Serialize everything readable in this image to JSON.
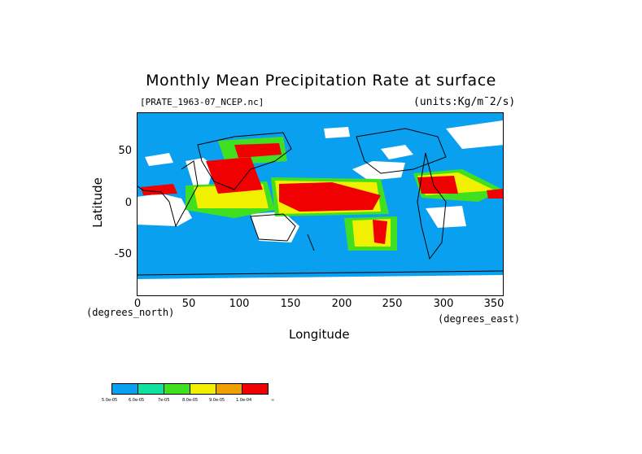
{
  "title": "Monthly Mean Precipitation Rate at surface",
  "file_label": "[PRATE_1963-07_NCEP.nc]",
  "units_label": "(units:Kg/m¯2/s)",
  "y_axis": {
    "label": "Latitude",
    "ticks": [
      "50",
      "0",
      "-50"
    ],
    "unit": "(degrees_north)",
    "range": [
      -90,
      90
    ]
  },
  "x_axis": {
    "label": "Longitude",
    "ticks": [
      "0",
      "50",
      "100",
      "150",
      "200",
      "250",
      "300",
      "350"
    ],
    "unit": "(degrees_east)",
    "range": [
      0,
      360
    ]
  },
  "colorbar": {
    "colors": [
      "#0aa0f0",
      "#10e0a0",
      "#40e020",
      "#f0f000",
      "#f0a000",
      "#f00000"
    ],
    "labels": [
      "5.0e-05",
      "6.0e-05",
      "7e-05",
      "8.0e-05",
      "9.0e-05",
      "1.0e-04",
      "∞"
    ]
  },
  "chart_data": {
    "type": "heatmap",
    "title": "Monthly Mean Precipitation Rate at surface",
    "xlabel": "Longitude",
    "ylabel": "Latitude",
    "xlim": [
      0,
      360
    ],
    "ylim": [
      -90,
      90
    ],
    "background_level_color": "#0aa0f0",
    "low_value_color": "#ffffff",
    "high_regions": [
      {
        "lon": [
          140,
          210
        ],
        "lat": [
          5,
          20
        ],
        "level": "red"
      },
      {
        "lon": [
          85,
          130
        ],
        "lat": [
          10,
          30
        ],
        "level": "red"
      },
      {
        "lon": [
          280,
          310
        ],
        "lat": [
          5,
          25
        ],
        "level": "red"
      },
      {
        "lon": [
          230,
          245
        ],
        "lat": [
          -35,
          -20
        ],
        "level": "red"
      },
      {
        "lon": [
          0,
          40
        ],
        "lat": [
          5,
          15
        ],
        "level": "red"
      },
      {
        "lon": [
          110,
          140
        ],
        "lat": [
          40,
          55
        ],
        "level": "red"
      }
    ]
  }
}
